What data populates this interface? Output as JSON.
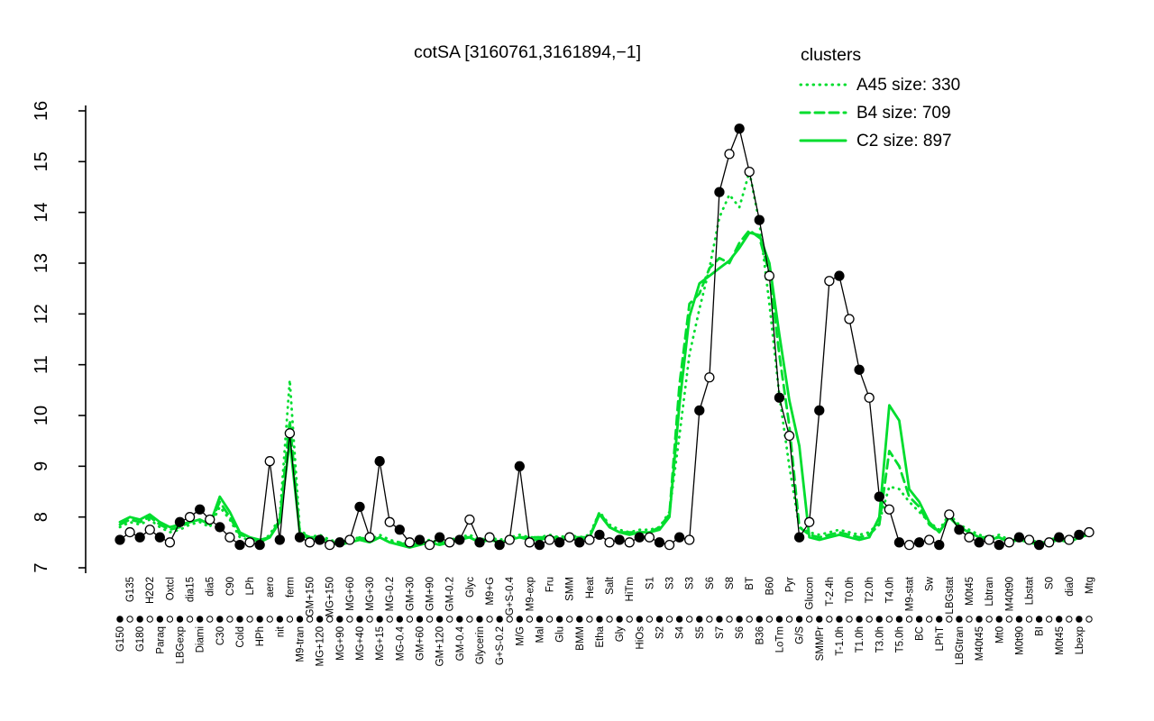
{
  "chart_data": {
    "type": "line",
    "title": "cotSA [3160761,3161894,−1]",
    "legend_title": "clusters",
    "legend_position": "top-right",
    "colors": {
      "cluster_green": "#00DD2E",
      "gene_black": "#000000",
      "background": "#ffffff"
    },
    "ylim": [
      7,
      16
    ],
    "yticks": [
      7,
      8,
      9,
      10,
      11,
      12,
      13,
      14,
      15,
      16
    ],
    "grid": false,
    "x_axis_note": "condition labels rotated vertically, staggered in two alternating rows; row of alternating filled/open sample dots above labels",
    "categories": [
      "G150",
      "G135",
      "G180",
      "H2O2",
      "Paraq",
      "Oxtcl",
      "LBGexp",
      "dia15",
      "Diami",
      "dia5",
      "C30",
      "C90",
      "Cold",
      "LPh",
      "HPh",
      "aero",
      "nit",
      "ferm",
      "M9-tran",
      "GM+150",
      "MG+120",
      "MG+150",
      "MG+90",
      "MG+60",
      "MG+40",
      "MG+30",
      "MG+15",
      "MG-0.2",
      "MG-0.4",
      "GM+30",
      "GM+60",
      "GM+90",
      "GM+120",
      "GM-0.2",
      "GM-0.4",
      "Glyc",
      "Glycerin",
      "M9+G",
      "G+S-0.2",
      "G+S-0.4",
      "M/G",
      "M9-exp",
      "Mal",
      "Fru",
      "Glu",
      "SMM",
      "BMM",
      "Heat",
      "Etha",
      "Salt",
      "Gly",
      "HiTm",
      "HiOs",
      "S1",
      "S2",
      "S3",
      "S4",
      "S3",
      "S5",
      "S6",
      "S7",
      "S8",
      "S6",
      "BT",
      "B36",
      "B60",
      "LoTm",
      "Pyr",
      "G/S",
      "Glucon",
      "SMMPr",
      "T-2.4h",
      "T-1.0h",
      "T0.0h",
      "T1.0h",
      "T2.0h",
      "T3.0h",
      "T4.0h",
      "T5.0h",
      "M9-stat",
      "BC",
      "Sw",
      "LPhT",
      "LBGstat",
      "LBGtran",
      "M0t45",
      "M40t45",
      "Lbtran",
      "Mt0",
      "M40t90",
      "M0t90",
      "Lbstat",
      "BI",
      "S0",
      "M0t45",
      "dia0",
      "Lbexp",
      "Mtg"
    ],
    "series": [
      {
        "name": "gene",
        "legend": null,
        "color": "#000000",
        "style": "solid",
        "line_width": 1.3,
        "markers": "circles alternating filled/open",
        "values": [
          7.55,
          7.7,
          7.6,
          7.75,
          7.6,
          7.5,
          7.9,
          8.0,
          8.15,
          7.95,
          7.8,
          7.6,
          7.45,
          7.5,
          7.45,
          9.1,
          7.55,
          9.65,
          7.6,
          7.5,
          7.55,
          7.45,
          7.5,
          7.55,
          8.2,
          7.6,
          9.1,
          7.9,
          7.75,
          7.5,
          7.55,
          7.45,
          7.6,
          7.5,
          7.55,
          7.95,
          7.5,
          7.6,
          7.45,
          7.55,
          9.0,
          7.5,
          7.45,
          7.55,
          7.5,
          7.6,
          7.5,
          7.55,
          7.65,
          7.5,
          7.55,
          7.5,
          7.6,
          7.6,
          7.5,
          7.45,
          7.6,
          7.55,
          10.1,
          10.75,
          14.4,
          15.15,
          15.65,
          14.8,
          13.85,
          12.75,
          10.35,
          9.6,
          7.6,
          7.9,
          10.1,
          12.65,
          12.75,
          11.9,
          10.9,
          10.35,
          8.4,
          8.15,
          7.5,
          7.45,
          7.5,
          7.55,
          7.45,
          8.05,
          7.75,
          7.6,
          7.5,
          7.55,
          7.45,
          7.5,
          7.6,
          7.55,
          7.45,
          7.5,
          7.6,
          7.55,
          7.65,
          7.7
        ]
      },
      {
        "name": "A45",
        "legend": "A45 size: 330",
        "size": 330,
        "color": "#00DD2E",
        "style": "dotted",
        "line_width": 2.8,
        "markers": "none",
        "values": [
          7.8,
          7.9,
          7.85,
          7.95,
          7.8,
          7.7,
          7.75,
          7.85,
          7.9,
          7.8,
          8.2,
          7.95,
          7.6,
          7.55,
          7.5,
          7.65,
          8.0,
          10.7,
          7.75,
          7.6,
          7.65,
          7.55,
          7.5,
          7.55,
          7.6,
          7.55,
          7.65,
          7.55,
          7.5,
          7.45,
          7.5,
          7.55,
          7.5,
          7.55,
          7.6,
          7.65,
          7.55,
          7.6,
          7.55,
          7.6,
          7.65,
          7.6,
          7.6,
          7.65,
          7.6,
          7.65,
          7.6,
          7.65,
          8.1,
          7.85,
          7.75,
          7.7,
          7.75,
          7.75,
          7.8,
          8.1,
          9.6,
          11.2,
          12.1,
          12.9,
          13.9,
          14.35,
          14.1,
          14.8,
          13.8,
          12.2,
          10.4,
          9.0,
          7.8,
          7.7,
          7.65,
          7.7,
          7.75,
          7.7,
          7.65,
          7.7,
          7.9,
          8.6,
          8.55,
          8.3,
          8.1,
          7.9,
          7.75,
          8.05,
          7.85,
          7.75,
          7.65,
          7.6,
          7.65,
          7.55,
          7.6,
          7.55,
          7.5,
          7.55,
          7.6,
          7.55,
          7.65,
          7.7
        ]
      },
      {
        "name": "B4",
        "legend": "B4 size: 709",
        "size": 709,
        "color": "#00DD2E",
        "style": "dashed",
        "line_width": 2.8,
        "markers": "none",
        "values": [
          7.85,
          7.95,
          7.9,
          8.0,
          7.85,
          7.75,
          7.8,
          7.9,
          7.95,
          7.85,
          8.3,
          8.0,
          7.65,
          7.6,
          7.5,
          7.6,
          7.95,
          9.9,
          7.7,
          7.6,
          7.6,
          7.5,
          7.5,
          7.5,
          7.6,
          7.5,
          7.6,
          7.5,
          7.5,
          7.4,
          7.5,
          7.5,
          7.5,
          7.5,
          7.6,
          7.6,
          7.5,
          7.6,
          7.5,
          7.6,
          7.6,
          7.6,
          7.6,
          7.6,
          7.6,
          7.6,
          7.6,
          7.6,
          8.1,
          7.8,
          7.7,
          7.7,
          7.7,
          7.7,
          7.8,
          8.05,
          10.6,
          12.2,
          12.4,
          12.9,
          13.1,
          13.0,
          13.4,
          13.65,
          13.5,
          12.8,
          11.2,
          9.8,
          7.8,
          7.65,
          7.6,
          7.65,
          7.7,
          7.65,
          7.6,
          7.65,
          7.85,
          9.3,
          9.0,
          8.4,
          8.2,
          7.85,
          7.7,
          8.0,
          7.8,
          7.7,
          7.6,
          7.6,
          7.6,
          7.5,
          7.6,
          7.5,
          7.5,
          7.5,
          7.6,
          7.5,
          7.6,
          7.7
        ]
      },
      {
        "name": "C2",
        "legend": "C2 size: 897",
        "size": 897,
        "color": "#00DD2E",
        "style": "solid",
        "line_width": 2.8,
        "markers": "none",
        "values": [
          7.9,
          8.0,
          7.95,
          8.05,
          7.9,
          7.8,
          7.85,
          7.9,
          7.95,
          7.85,
          8.4,
          8.1,
          7.7,
          7.6,
          7.55,
          7.6,
          7.9,
          9.5,
          7.7,
          7.55,
          7.6,
          7.5,
          7.45,
          7.5,
          7.55,
          7.5,
          7.6,
          7.5,
          7.45,
          7.4,
          7.45,
          7.5,
          7.45,
          7.5,
          7.55,
          7.6,
          7.5,
          7.55,
          7.5,
          7.55,
          7.6,
          7.55,
          7.55,
          7.6,
          7.55,
          7.6,
          7.55,
          7.6,
          8.05,
          7.8,
          7.7,
          7.65,
          7.7,
          7.7,
          7.75,
          8.0,
          10.2,
          11.95,
          12.6,
          12.75,
          12.9,
          13.05,
          13.3,
          13.6,
          13.55,
          13.0,
          11.6,
          10.3,
          9.4,
          7.6,
          7.55,
          7.6,
          7.65,
          7.6,
          7.55,
          7.6,
          8.0,
          10.2,
          9.9,
          8.55,
          8.3,
          7.9,
          7.7,
          8.0,
          7.8,
          7.7,
          7.6,
          7.55,
          7.6,
          7.5,
          7.55,
          7.5,
          7.45,
          7.5,
          7.55,
          7.5,
          7.6,
          7.65
        ]
      }
    ]
  }
}
